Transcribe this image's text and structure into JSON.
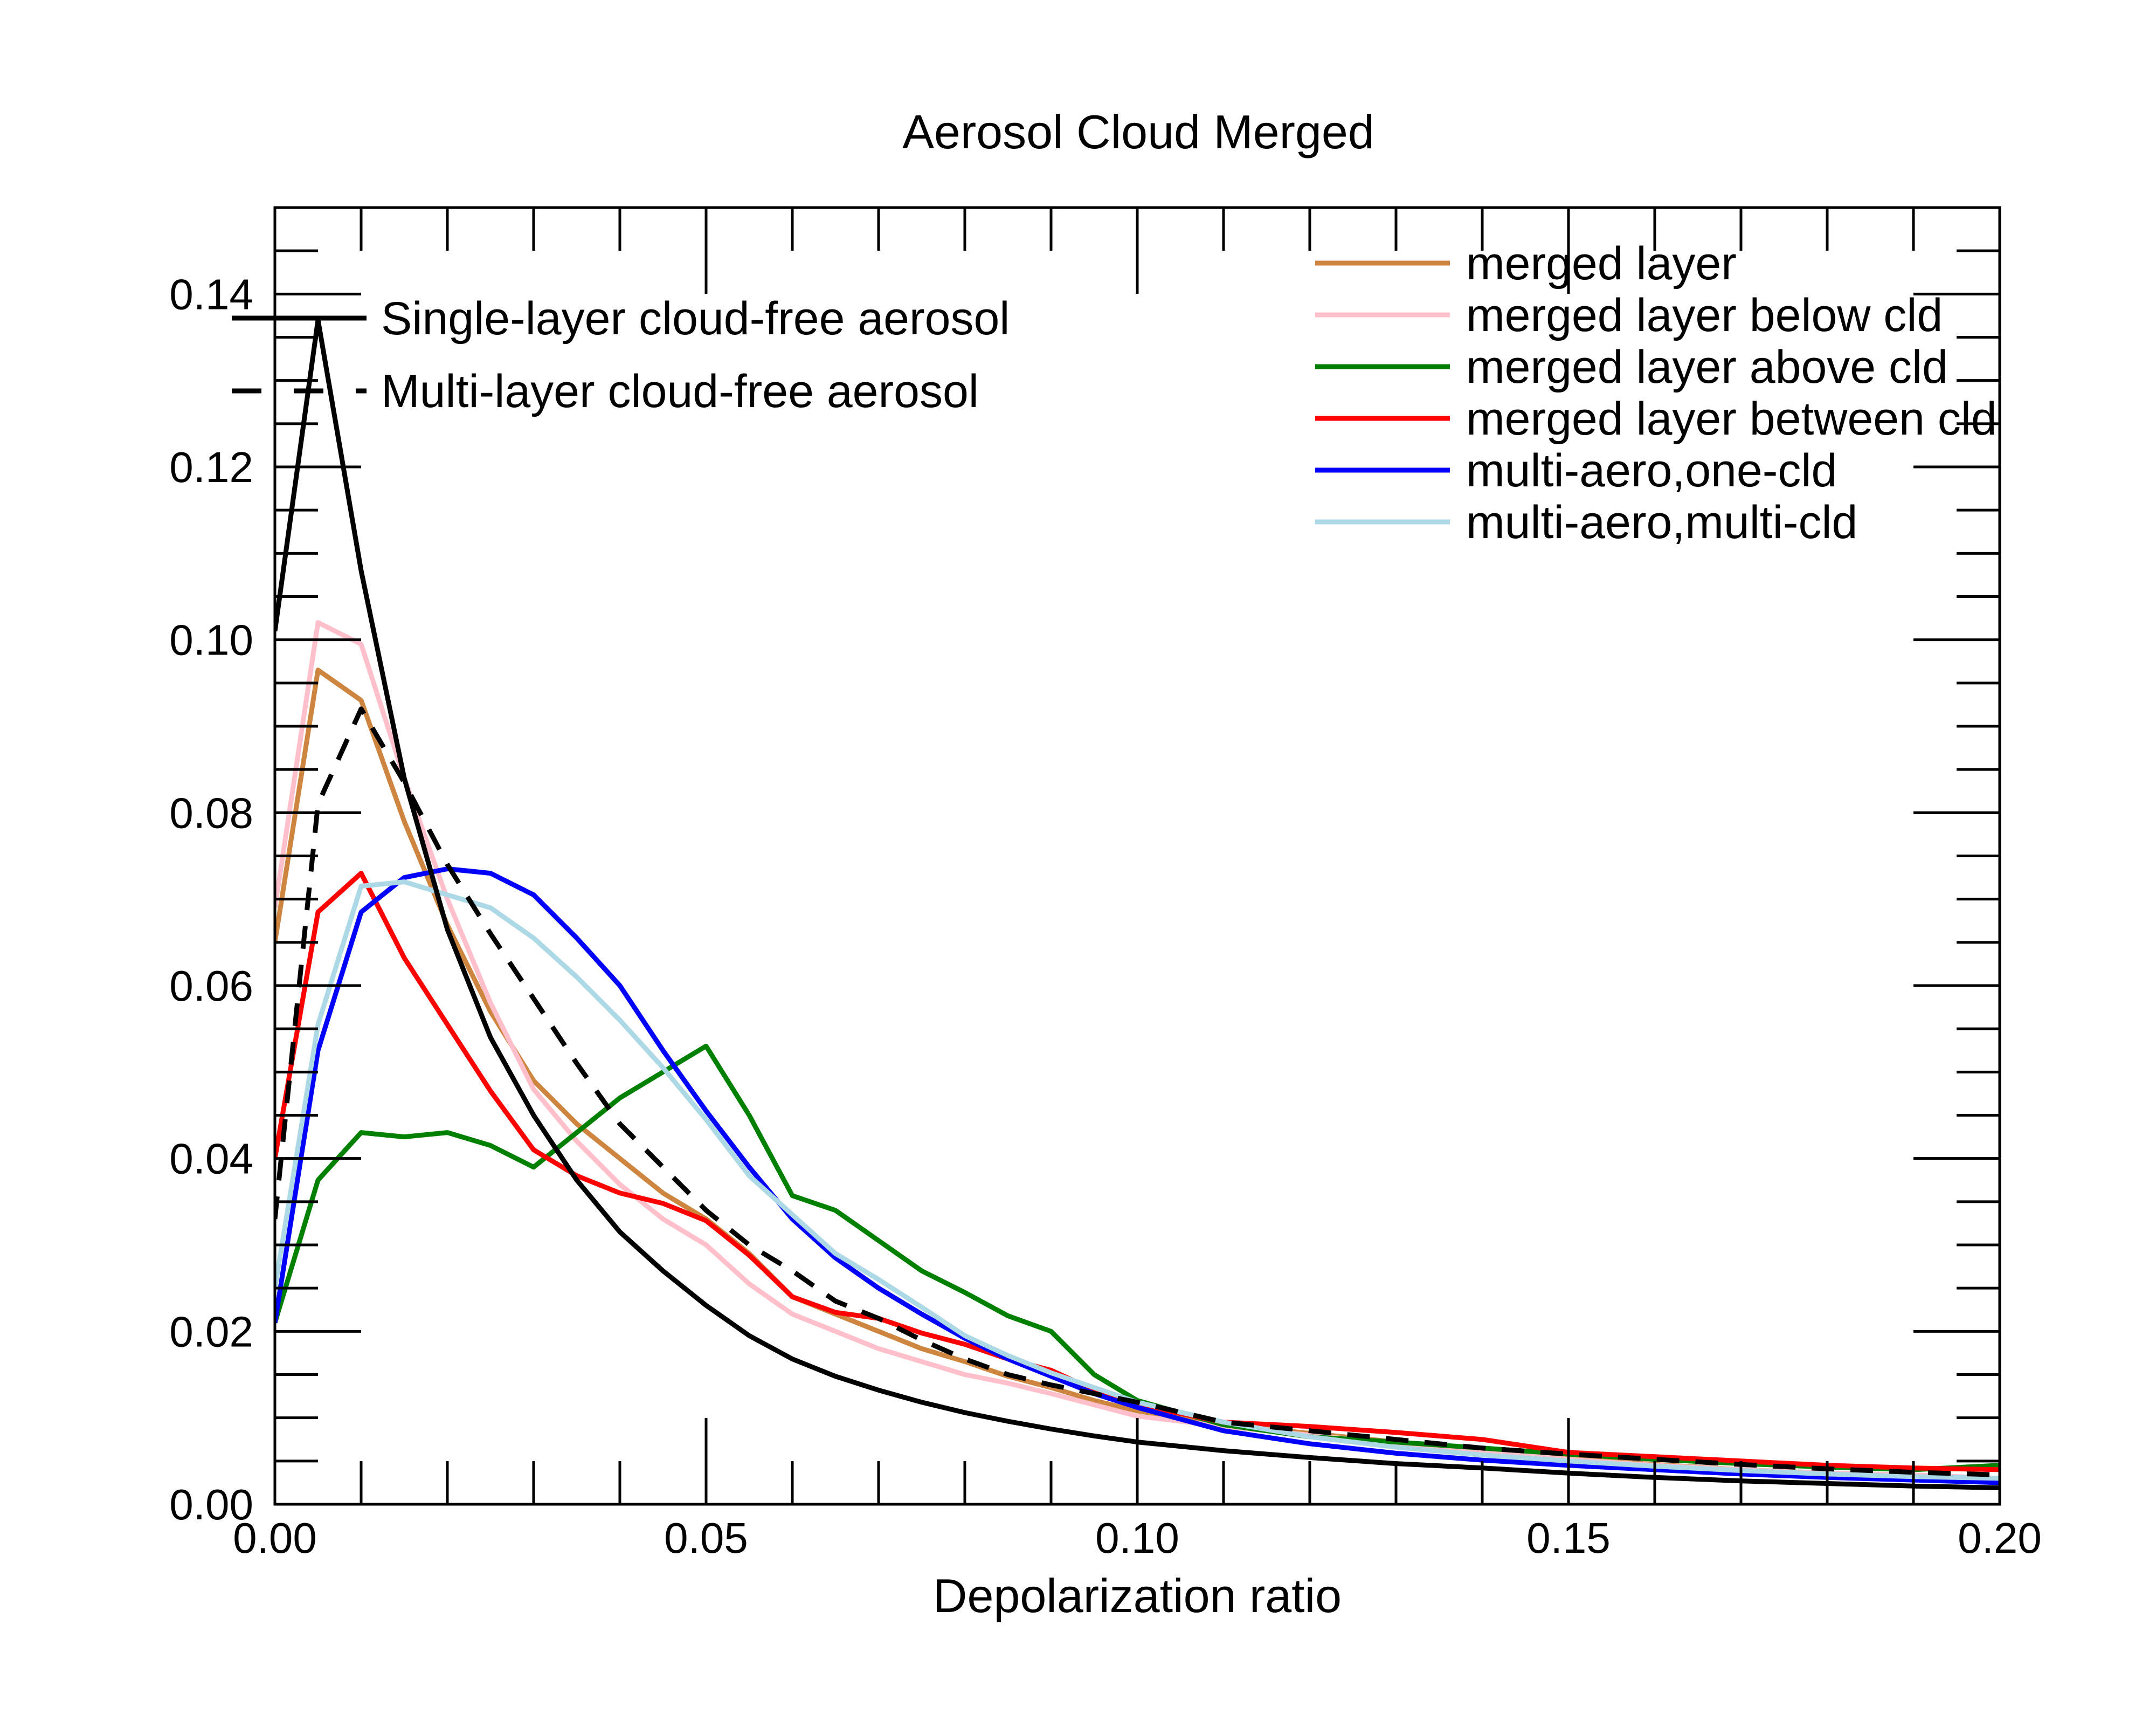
{
  "chart_data": {
    "type": "line",
    "title": "Aerosol Cloud Merged",
    "xlabel": "Depolarization ratio",
    "ylabel": "",
    "xlim": [
      0.0,
      0.2
    ],
    "ylim": [
      0.0,
      0.15
    ],
    "x_ticks": [
      "0.00",
      "0.05",
      "0.10",
      "0.15",
      "0.20"
    ],
    "y_ticks": [
      "0.00",
      "0.02",
      "0.04",
      "0.06",
      "0.08",
      "0.10",
      "0.12",
      "0.14"
    ],
    "grid": false,
    "legends": {
      "left": [
        {
          "label": "Single-layer cloud-free aerosol",
          "series": "single"
        },
        {
          "label": "Multi-layer cloud-free aerosol",
          "series": "multi"
        }
      ],
      "right": [
        {
          "label": "merged layer",
          "series": "merged"
        },
        {
          "label": "merged layer below cld",
          "series": "below"
        },
        {
          "label": "merged layer above cld",
          "series": "above"
        },
        {
          "label": "merged layer between cld",
          "series": "between"
        },
        {
          "label": "multi-aero,one-cld",
          "series": "onecld"
        },
        {
          "label": "multi-aero,multi-cld",
          "series": "multicld"
        }
      ]
    },
    "series": [
      {
        "id": "merged",
        "color": "#CD853F",
        "dash": false,
        "x": [
          0.0,
          0.005,
          0.01,
          0.015,
          0.02,
          0.025,
          0.03,
          0.035,
          0.04,
          0.045,
          0.05,
          0.055,
          0.06,
          0.065,
          0.07,
          0.075,
          0.08,
          0.085,
          0.09,
          0.095,
          0.1,
          0.11,
          0.12,
          0.13,
          0.14,
          0.15,
          0.16,
          0.17,
          0.18,
          0.19,
          0.2
        ],
        "y": [
          0.065,
          0.0965,
          0.093,
          0.079,
          0.067,
          0.057,
          0.049,
          0.044,
          0.04,
          0.036,
          0.033,
          0.029,
          0.024,
          0.022,
          0.02,
          0.018,
          0.0165,
          0.0148,
          0.0135,
          0.012,
          0.0108,
          0.0092,
          0.0082,
          0.0072,
          0.0062,
          0.0053,
          0.0046,
          0.004,
          0.0036,
          0.0033,
          0.003
        ]
      },
      {
        "id": "below",
        "color": "#FFC0CB",
        "dash": false,
        "x": [
          0.0,
          0.005,
          0.01,
          0.015,
          0.02,
          0.025,
          0.03,
          0.035,
          0.04,
          0.045,
          0.05,
          0.055,
          0.06,
          0.065,
          0.07,
          0.075,
          0.08,
          0.085,
          0.09,
          0.095,
          0.1,
          0.11,
          0.12,
          0.13,
          0.14,
          0.15,
          0.16,
          0.17,
          0.18,
          0.19,
          0.2
        ],
        "y": [
          0.069,
          0.102,
          0.0995,
          0.084,
          0.07,
          0.058,
          0.048,
          0.042,
          0.037,
          0.033,
          0.03,
          0.0255,
          0.022,
          0.02,
          0.018,
          0.0165,
          0.015,
          0.014,
          0.0128,
          0.0115,
          0.0102,
          0.009,
          0.008,
          0.007,
          0.006,
          0.0052,
          0.0045,
          0.004,
          0.0036,
          0.0034,
          0.003
        ]
      },
      {
        "id": "above",
        "color": "#008000",
        "dash": false,
        "x": [
          0.0,
          0.005,
          0.01,
          0.015,
          0.02,
          0.025,
          0.03,
          0.035,
          0.04,
          0.045,
          0.05,
          0.055,
          0.06,
          0.065,
          0.07,
          0.075,
          0.08,
          0.085,
          0.09,
          0.095,
          0.1,
          0.11,
          0.12,
          0.13,
          0.14,
          0.15,
          0.16,
          0.17,
          0.18,
          0.19,
          0.2
        ],
        "y": [
          0.021,
          0.0375,
          0.043,
          0.0425,
          0.043,
          0.0415,
          0.039,
          0.043,
          0.047,
          0.05,
          0.053,
          0.045,
          0.0357,
          0.034,
          0.0305,
          0.027,
          0.0245,
          0.0218,
          0.02,
          0.015,
          0.012,
          0.0092,
          0.0078,
          0.0072,
          0.0065,
          0.0058,
          0.0052,
          0.0047,
          0.0043,
          0.004,
          0.0045
        ]
      },
      {
        "id": "between",
        "color": "#FF0000",
        "dash": false,
        "x": [
          0.0,
          0.005,
          0.01,
          0.015,
          0.02,
          0.025,
          0.03,
          0.035,
          0.04,
          0.045,
          0.05,
          0.055,
          0.06,
          0.065,
          0.07,
          0.075,
          0.08,
          0.085,
          0.09,
          0.095,
          0.1,
          0.11,
          0.12,
          0.13,
          0.14,
          0.15,
          0.16,
          0.17,
          0.18,
          0.19,
          0.2
        ],
        "y": [
          0.04,
          0.0685,
          0.073,
          0.0632,
          0.0555,
          0.0478,
          0.041,
          0.038,
          0.036,
          0.0348,
          0.0328,
          0.0288,
          0.024,
          0.0222,
          0.0215,
          0.0198,
          0.0185,
          0.0168,
          0.0155,
          0.0132,
          0.0115,
          0.0095,
          0.009,
          0.0083,
          0.0075,
          0.006,
          0.0055,
          0.005,
          0.0045,
          0.0042,
          0.004
        ]
      },
      {
        "id": "onecld",
        "color": "#0000FF",
        "dash": false,
        "x": [
          0.0,
          0.005,
          0.01,
          0.015,
          0.02,
          0.025,
          0.03,
          0.035,
          0.04,
          0.045,
          0.05,
          0.055,
          0.06,
          0.065,
          0.07,
          0.075,
          0.08,
          0.085,
          0.09,
          0.095,
          0.1,
          0.11,
          0.12,
          0.13,
          0.14,
          0.15,
          0.16,
          0.17,
          0.18,
          0.19,
          0.2
        ],
        "y": [
          0.021,
          0.0525,
          0.0685,
          0.0725,
          0.0735,
          0.073,
          0.0705,
          0.0655,
          0.06,
          0.0525,
          0.0455,
          0.039,
          0.033,
          0.0285,
          0.025,
          0.022,
          0.0192,
          0.0168,
          0.0148,
          0.0128,
          0.0112,
          0.0085,
          0.007,
          0.0059,
          0.0051,
          0.0045,
          0.004,
          0.0035,
          0.0031,
          0.0028,
          0.0025
        ]
      },
      {
        "id": "multicld",
        "color": "#ADD8E6",
        "dash": false,
        "x": [
          0.0,
          0.005,
          0.01,
          0.015,
          0.02,
          0.025,
          0.03,
          0.035,
          0.04,
          0.045,
          0.05,
          0.055,
          0.06,
          0.065,
          0.07,
          0.075,
          0.08,
          0.085,
          0.09,
          0.095,
          0.1,
          0.11,
          0.12,
          0.13,
          0.14,
          0.15,
          0.16,
          0.17,
          0.18,
          0.19,
          0.2
        ],
        "y": [
          0.025,
          0.0555,
          0.0715,
          0.072,
          0.0705,
          0.069,
          0.0655,
          0.061,
          0.056,
          0.0505,
          0.0445,
          0.038,
          0.0335,
          0.029,
          0.026,
          0.0228,
          0.0195,
          0.0172,
          0.0152,
          0.0135,
          0.0118,
          0.0095,
          0.0078,
          0.0066,
          0.0057,
          0.005,
          0.0044,
          0.0039,
          0.0035,
          0.0032,
          0.003
        ]
      },
      {
        "id": "single",
        "color": "#000000",
        "dash": false,
        "x": [
          0.0,
          0.005,
          0.01,
          0.015,
          0.02,
          0.025,
          0.03,
          0.035,
          0.04,
          0.045,
          0.05,
          0.055,
          0.06,
          0.065,
          0.07,
          0.075,
          0.08,
          0.085,
          0.09,
          0.095,
          0.1,
          0.11,
          0.12,
          0.13,
          0.14,
          0.15,
          0.16,
          0.17,
          0.18,
          0.19,
          0.2
        ],
        "y": [
          0.101,
          0.137,
          0.108,
          0.084,
          0.0665,
          0.054,
          0.045,
          0.0375,
          0.0315,
          0.027,
          0.023,
          0.0195,
          0.0168,
          0.0148,
          0.0132,
          0.0118,
          0.0106,
          0.0096,
          0.0087,
          0.0079,
          0.0072,
          0.0062,
          0.0054,
          0.0047,
          0.0042,
          0.0036,
          0.0031,
          0.0027,
          0.0024,
          0.0021,
          0.0019
        ]
      },
      {
        "id": "multi",
        "color": "#000000",
        "dash": true,
        "x": [
          0.0,
          0.005,
          0.01,
          0.015,
          0.02,
          0.025,
          0.03,
          0.035,
          0.04,
          0.045,
          0.05,
          0.055,
          0.06,
          0.065,
          0.07,
          0.075,
          0.08,
          0.085,
          0.09,
          0.095,
          0.1,
          0.11,
          0.12,
          0.13,
          0.14,
          0.15,
          0.16,
          0.17,
          0.18,
          0.19,
          0.2
        ],
        "y": [
          0.033,
          0.081,
          0.092,
          0.0835,
          0.074,
          0.066,
          0.0585,
          0.051,
          0.044,
          0.039,
          0.034,
          0.03,
          0.027,
          0.0235,
          0.0215,
          0.019,
          0.0168,
          0.015,
          0.0138,
          0.0128,
          0.0118,
          0.0095,
          0.0085,
          0.0075,
          0.0065,
          0.0058,
          0.0052,
          0.0046,
          0.0041,
          0.0037,
          0.0034
        ]
      }
    ]
  }
}
